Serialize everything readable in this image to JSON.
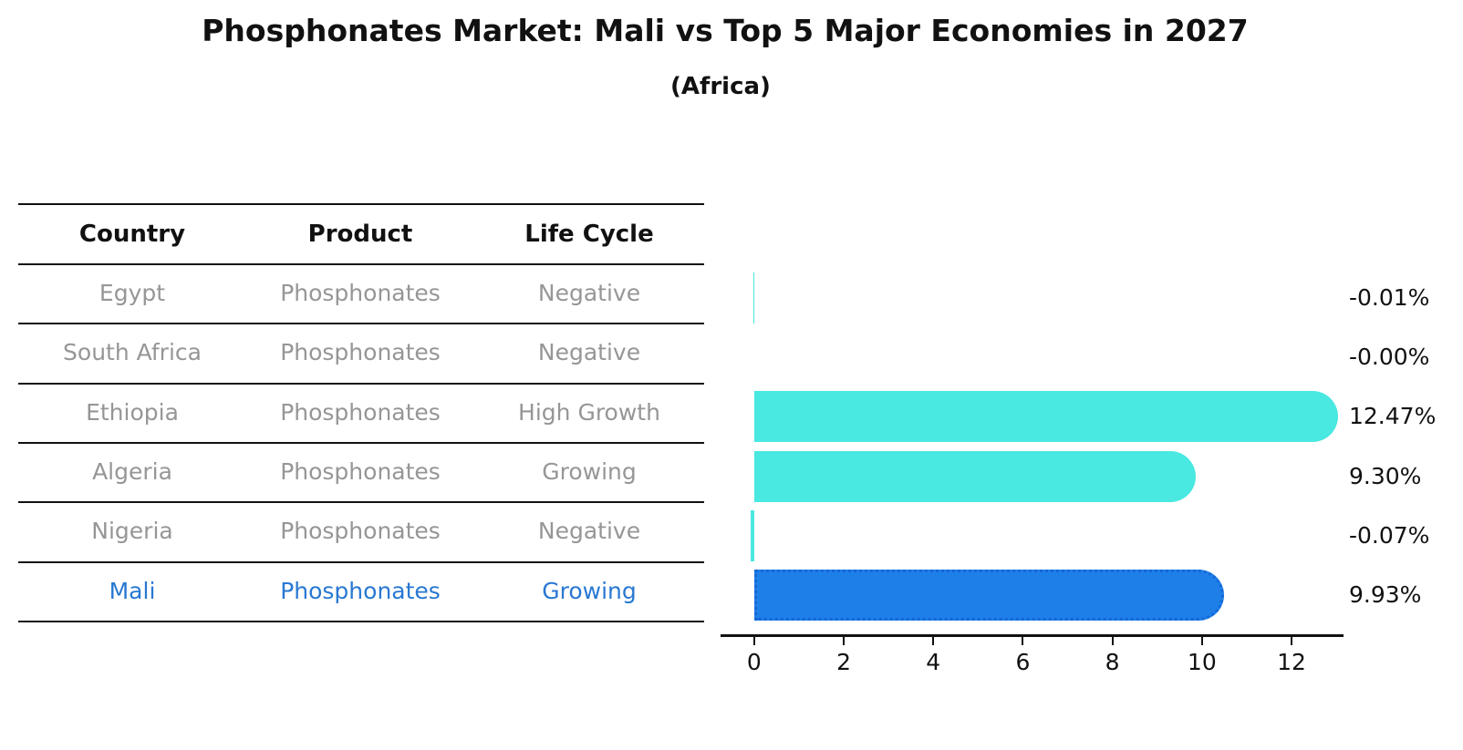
{
  "title": "Phosphonates Market: Mali vs Top 5 Major Economies in 2027",
  "subtitle": "(Africa)",
  "table": {
    "headers": [
      "Country",
      "Product",
      "Life Cycle"
    ],
    "rows": [
      {
        "country": "Egypt",
        "product": "Phosphonates",
        "life_cycle": "Negative",
        "highlight": false
      },
      {
        "country": "South Africa",
        "product": "Phosphonates",
        "life_cycle": "Negative",
        "highlight": false
      },
      {
        "country": "Ethiopia",
        "product": "Phosphonates",
        "life_cycle": "High Growth",
        "highlight": false
      },
      {
        "country": "Algeria",
        "product": "Phosphonates",
        "life_cycle": "Growing",
        "highlight": false
      },
      {
        "country": "Nigeria",
        "product": "Phosphonates",
        "life_cycle": "Negative",
        "highlight": false
      },
      {
        "country": "Mali",
        "product": "Phosphonates",
        "life_cycle": "Growing",
        "highlight": true
      }
    ]
  },
  "chart_data": {
    "type": "bar",
    "orientation": "horizontal",
    "title": "Phosphonates Market: Mali vs Top 5 Major Economies in 2027",
    "subtitle": "(Africa)",
    "categories": [
      "Egypt",
      "South Africa",
      "Ethiopia",
      "Algeria",
      "Nigeria",
      "Mali"
    ],
    "values": [
      -0.01,
      -0.0,
      12.47,
      9.3,
      -0.07,
      9.93
    ],
    "value_labels": [
      "-0.01%",
      "-0.00%",
      "12.47%",
      "9.30%",
      "-0.07%",
      "9.93%"
    ],
    "units": "percent CAGR",
    "xlabel": "",
    "ylabel": "",
    "xticks": [
      0,
      2,
      4,
      6,
      8,
      10,
      12
    ],
    "xlim": [
      -0.75,
      13.16
    ],
    "grid": false,
    "legend": false,
    "highlight_index": 5
  },
  "colors": {
    "bar_default": "#49e8e1",
    "bar_highlight": "#1e7fe8",
    "bar_highlight_border": "#1668d8",
    "highlight_text": "#2878d2",
    "row_text": "#969696",
    "header_text": "#111111",
    "axis": "#111111"
  }
}
